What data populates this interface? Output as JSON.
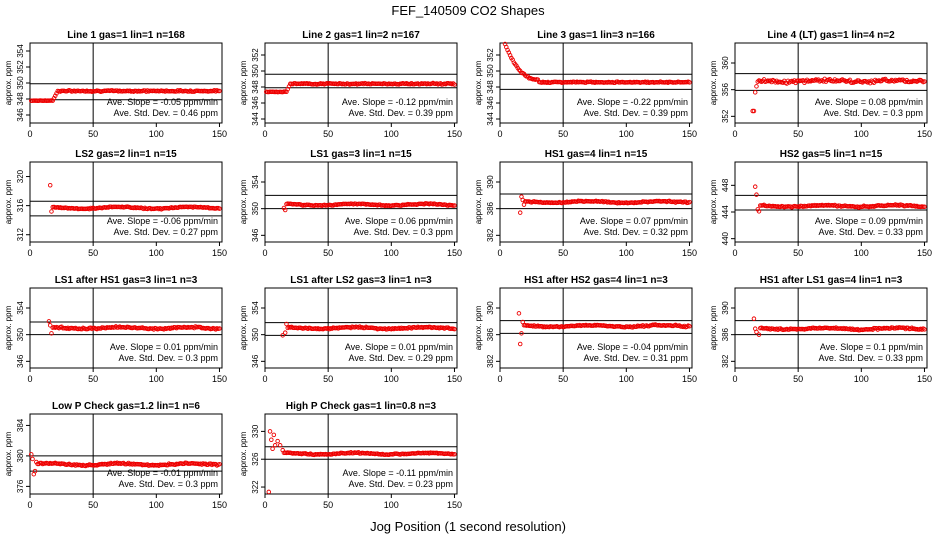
{
  "title": "FEF_140509  CO2 Shapes",
  "xlabel": "Jog Position (1 second resolution)",
  "colors": {
    "points": "#ee0000",
    "axes": "#000000",
    "refline": "#000000"
  },
  "panel_ylabel": "approx. ppm",
  "slope_prefix": "Ave. Slope = ",
  "slope_unit": "  ppm/min",
  "std_prefix": "Ave. Std. Dev. = ",
  "std_unit": "  ppm",
  "chart_data": [
    {
      "type": "scatter",
      "title": "Line 1 gas=1 lin=1 n=168",
      "ylabel": "approx. ppm",
      "xlim": [
        0,
        152
      ],
      "ylim": [
        345,
        355
      ],
      "xticks": [
        "0",
        "50",
        "100",
        "150"
      ],
      "yticks": [
        "346",
        "348",
        "350",
        "352",
        "354"
      ],
      "vline_x": 50,
      "hlines_y": [
        347.9,
        349.9
      ],
      "slope": "-0.05",
      "std_dev": "0.46",
      "series_desc": {
        "start": [
          1,
          347.8
        ],
        "rise": [
          18,
          22
        ],
        "level": 349.0,
        "noise": 0.12
      }
    },
    {
      "type": "scatter",
      "title": "Line 2 gas=1 lin=2 n=167",
      "ylabel": "approx. ppm",
      "xlim": [
        0,
        152
      ],
      "ylim": [
        343.5,
        353.5
      ],
      "xticks": [
        "0",
        "50",
        "100",
        "150"
      ],
      "yticks": [
        "344",
        "346",
        "348",
        "350",
        "352"
      ],
      "vline_x": 50,
      "hlines_y": [
        347.9,
        349.6
      ],
      "slope": "-0.12",
      "std_dev": "0.39",
      "series_desc": {
        "start": [
          1,
          347.4
        ],
        "rise": [
          17,
          20
        ],
        "level": 348.4,
        "noise": 0.12
      }
    },
    {
      "type": "scatter",
      "title": "Line 3 gas=1 lin=3 n=166",
      "ylabel": "approx. ppm",
      "xlim": [
        0,
        152
      ],
      "ylim": [
        343.5,
        353.5
      ],
      "xticks": [
        "0",
        "50",
        "100",
        "150"
      ],
      "yticks": [
        "344",
        "346",
        "348",
        "350",
        "352"
      ],
      "vline_x": 50,
      "hlines_y": [
        347.7,
        349.6
      ],
      "slope": "-0.22",
      "std_dev": "0.39",
      "series_desc": {
        "decay_from": [
          4,
          353.3
        ],
        "decay_to": [
          30,
          348.9
        ],
        "level": 348.6,
        "noise": 0.1
      }
    },
    {
      "type": "scatter",
      "title": "Line 4 (LT) gas=1 lin=4 n=2",
      "ylabel": "approx. ppm",
      "xlim": [
        0,
        152
      ],
      "ylim": [
        351,
        363
      ],
      "xticks": [
        "0",
        "50",
        "100",
        "150"
      ],
      "yticks": [
        "352",
        "356",
        "360"
      ],
      "vline_x": 50,
      "hlines_y": [
        355.9,
        358.4
      ],
      "slope": "0.08",
      "std_dev": "0.3",
      "series_desc": {
        "start_pts": [
          [
            14,
            352.8
          ],
          [
            15,
            352.8
          ],
          [
            16,
            355.6
          ],
          [
            17,
            356.5
          ],
          [
            18,
            357.2
          ]
        ],
        "level": 357.3,
        "noise": 0.35
      }
    },
    {
      "type": "scatter",
      "title": "LS2 gas=2 lin=1 n=15",
      "ylabel": "approx. ppm",
      "xlim": [
        0,
        152
      ],
      "ylim": [
        311,
        322
      ],
      "xticks": [
        "0",
        "50",
        "100",
        "150"
      ],
      "yticks": [
        "312",
        "316",
        "320"
      ],
      "vline_x": 50,
      "hlines_y": [
        314.6,
        316.6
      ],
      "slope": "-0.06",
      "std_dev": "0.27",
      "series_desc": {
        "start_pts": [
          [
            16,
            318.8
          ],
          [
            17,
            315.2
          ]
        ],
        "level": 315.7,
        "noise": 0.12
      }
    },
    {
      "type": "scatter",
      "title": "LS1 gas=3 lin=1 n=15",
      "ylabel": "approx. ppm",
      "xlim": [
        0,
        152
      ],
      "ylim": [
        345,
        357
      ],
      "xticks": [
        "0",
        "50",
        "100",
        "150"
      ],
      "yticks": [
        "346",
        "350",
        "354"
      ],
      "vline_x": 50,
      "hlines_y": [
        350.0,
        352.0
      ],
      "slope": "0.06",
      "std_dev": "0.3",
      "series_desc": {
        "start_pts": [
          [
            15,
            350.1
          ],
          [
            16,
            349.8
          ]
        ],
        "level": 350.6,
        "noise": 0.12
      }
    },
    {
      "type": "scatter",
      "title": "HS1 gas=4 lin=1 n=15",
      "ylabel": "approx. ppm",
      "xlim": [
        0,
        152
      ],
      "ylim": [
        381,
        393
      ],
      "xticks": [
        "0",
        "50",
        "100",
        "150"
      ],
      "yticks": [
        "382",
        "386",
        "390"
      ],
      "vline_x": 50,
      "hlines_y": [
        386.0,
        388.2
      ],
      "slope": "0.07",
      "std_dev": "0.32",
      "series_desc": {
        "start_pts": [
          [
            16,
            385.4
          ],
          [
            17,
            387.8
          ],
          [
            18,
            387.3
          ],
          [
            19,
            386.6
          ]
        ],
        "level": 387.0,
        "noise": 0.13
      }
    },
    {
      "type": "scatter",
      "title": "HS2 gas=5 lin=1 n=15",
      "ylabel": "approx. ppm",
      "xlim": [
        0,
        152
      ],
      "ylim": [
        439.5,
        451.5
      ],
      "xticks": [
        "0",
        "50",
        "100",
        "150"
      ],
      "yticks": [
        "440",
        "444",
        "448"
      ],
      "vline_x": 50,
      "hlines_y": [
        444.3,
        446.5
      ],
      "slope": "0.09",
      "std_dev": "0.33",
      "series_desc": {
        "start_pts": [
          [
            16,
            447.8
          ],
          [
            17,
            446.6
          ],
          [
            18,
            444.4
          ],
          [
            19,
            444.1
          ]
        ],
        "level": 444.9,
        "noise": 0.15
      }
    },
    {
      "type": "scatter",
      "title": "LS1 after HS1 gas=3 lin=1 n=3",
      "ylabel": "approx. ppm",
      "xlim": [
        0,
        152
      ],
      "ylim": [
        345,
        357
      ],
      "xticks": [
        "0",
        "50",
        "100",
        "150"
      ],
      "yticks": [
        "346",
        "350",
        "354"
      ],
      "vline_x": 50,
      "hlines_y": [
        350.0,
        351.9
      ],
      "slope": "0.01",
      "std_dev": "0.3",
      "series_desc": {
        "start_pts": [
          [
            15,
            352.0
          ],
          [
            16,
            351.4
          ],
          [
            17,
            350.2
          ]
        ],
        "level": 351.0,
        "noise": 0.18
      }
    },
    {
      "type": "scatter",
      "title": "LS1 after LS2 gas=3 lin=1 n=3",
      "ylabel": "approx. ppm",
      "xlim": [
        0,
        152
      ],
      "ylim": [
        345,
        357
      ],
      "xticks": [
        "0",
        "50",
        "100",
        "150"
      ],
      "yticks": [
        "346",
        "350",
        "354"
      ],
      "vline_x": 50,
      "hlines_y": [
        349.9,
        351.8
      ],
      "slope": "0.01",
      "std_dev": "0.29",
      "series_desc": {
        "start_pts": [
          [
            14,
            349.9
          ],
          [
            16,
            350.3
          ],
          [
            17,
            351.6
          ]
        ],
        "level": 351.0,
        "noise": 0.16
      }
    },
    {
      "type": "scatter",
      "title": "HS1 after HS2 gas=4 lin=1 n=3",
      "ylabel": "approx. ppm",
      "xlim": [
        0,
        152
      ],
      "ylim": [
        381,
        393
      ],
      "xticks": [
        "0",
        "50",
        "100",
        "150"
      ],
      "yticks": [
        "382",
        "386",
        "390"
      ],
      "vline_x": 50,
      "hlines_y": [
        386.2,
        388.1
      ],
      "slope": "-0.04",
      "std_dev": "0.31",
      "series_desc": {
        "start_pts": [
          [
            15,
            389.2
          ],
          [
            16,
            384.6
          ],
          [
            17,
            386.2
          ],
          [
            18,
            387.9
          ]
        ],
        "level": 387.3,
        "noise": 0.16
      }
    },
    {
      "type": "scatter",
      "title": "HS1 after LS1 gas=4 lin=1 n=3",
      "ylabel": "approx. ppm",
      "xlim": [
        0,
        152
      ],
      "ylim": [
        381,
        393
      ],
      "xticks": [
        "0",
        "50",
        "100",
        "150"
      ],
      "yticks": [
        "382",
        "386",
        "390"
      ],
      "vline_x": 50,
      "hlines_y": [
        386.0,
        388.1
      ],
      "slope": "0.1",
      "std_dev": "0.33",
      "series_desc": {
        "start_pts": [
          [
            15,
            388.4
          ],
          [
            16,
            386.9
          ],
          [
            17,
            386.4
          ],
          [
            19,
            386.0
          ]
        ],
        "level": 386.9,
        "noise": 0.17
      }
    },
    {
      "type": "scatter",
      "title": "Low P Check gas=1.2 lin=1 n=6",
      "ylabel": "approx. ppm",
      "xlim": [
        0,
        152
      ],
      "ylim": [
        375,
        385.5
      ],
      "xticks": [
        "0",
        "50",
        "100",
        "150"
      ],
      "yticks": [
        "376",
        "380",
        "384"
      ],
      "vline_x": 50,
      "hlines_y": [
        378.0,
        380.0
      ],
      "slope": "-0.01",
      "std_dev": "0.3",
      "series_desc": {
        "start_pts": [
          [
            1,
            380.2
          ],
          [
            2,
            379.6
          ],
          [
            3,
            377.6
          ],
          [
            4,
            378.0
          ],
          [
            5,
            379.2
          ]
        ],
        "level": 378.9,
        "noise": 0.15
      }
    },
    {
      "type": "scatter",
      "title": "High P Check gas=1 lin=0.8 n=3",
      "ylabel": "approx. ppm",
      "xlim": [
        0,
        152
      ],
      "ylim": [
        321,
        332.5
      ],
      "xticks": [
        "0",
        "50",
        "100",
        "150"
      ],
      "yticks": [
        "322",
        "326",
        "330"
      ],
      "vline_x": 50,
      "hlines_y": [
        326.0,
        327.8
      ],
      "slope": "-0.11",
      "std_dev": "0.23",
      "series_desc": {
        "start_pts": [
          [
            3,
            321.3
          ],
          [
            4,
            330.0
          ],
          [
            5,
            328.8
          ],
          [
            6,
            327.5
          ],
          [
            7,
            329.5
          ],
          [
            8,
            328.0
          ],
          [
            10,
            328.6
          ],
          [
            12,
            328.0
          ],
          [
            14,
            327.3
          ]
        ],
        "level": 326.8,
        "noise": 0.13
      }
    }
  ]
}
